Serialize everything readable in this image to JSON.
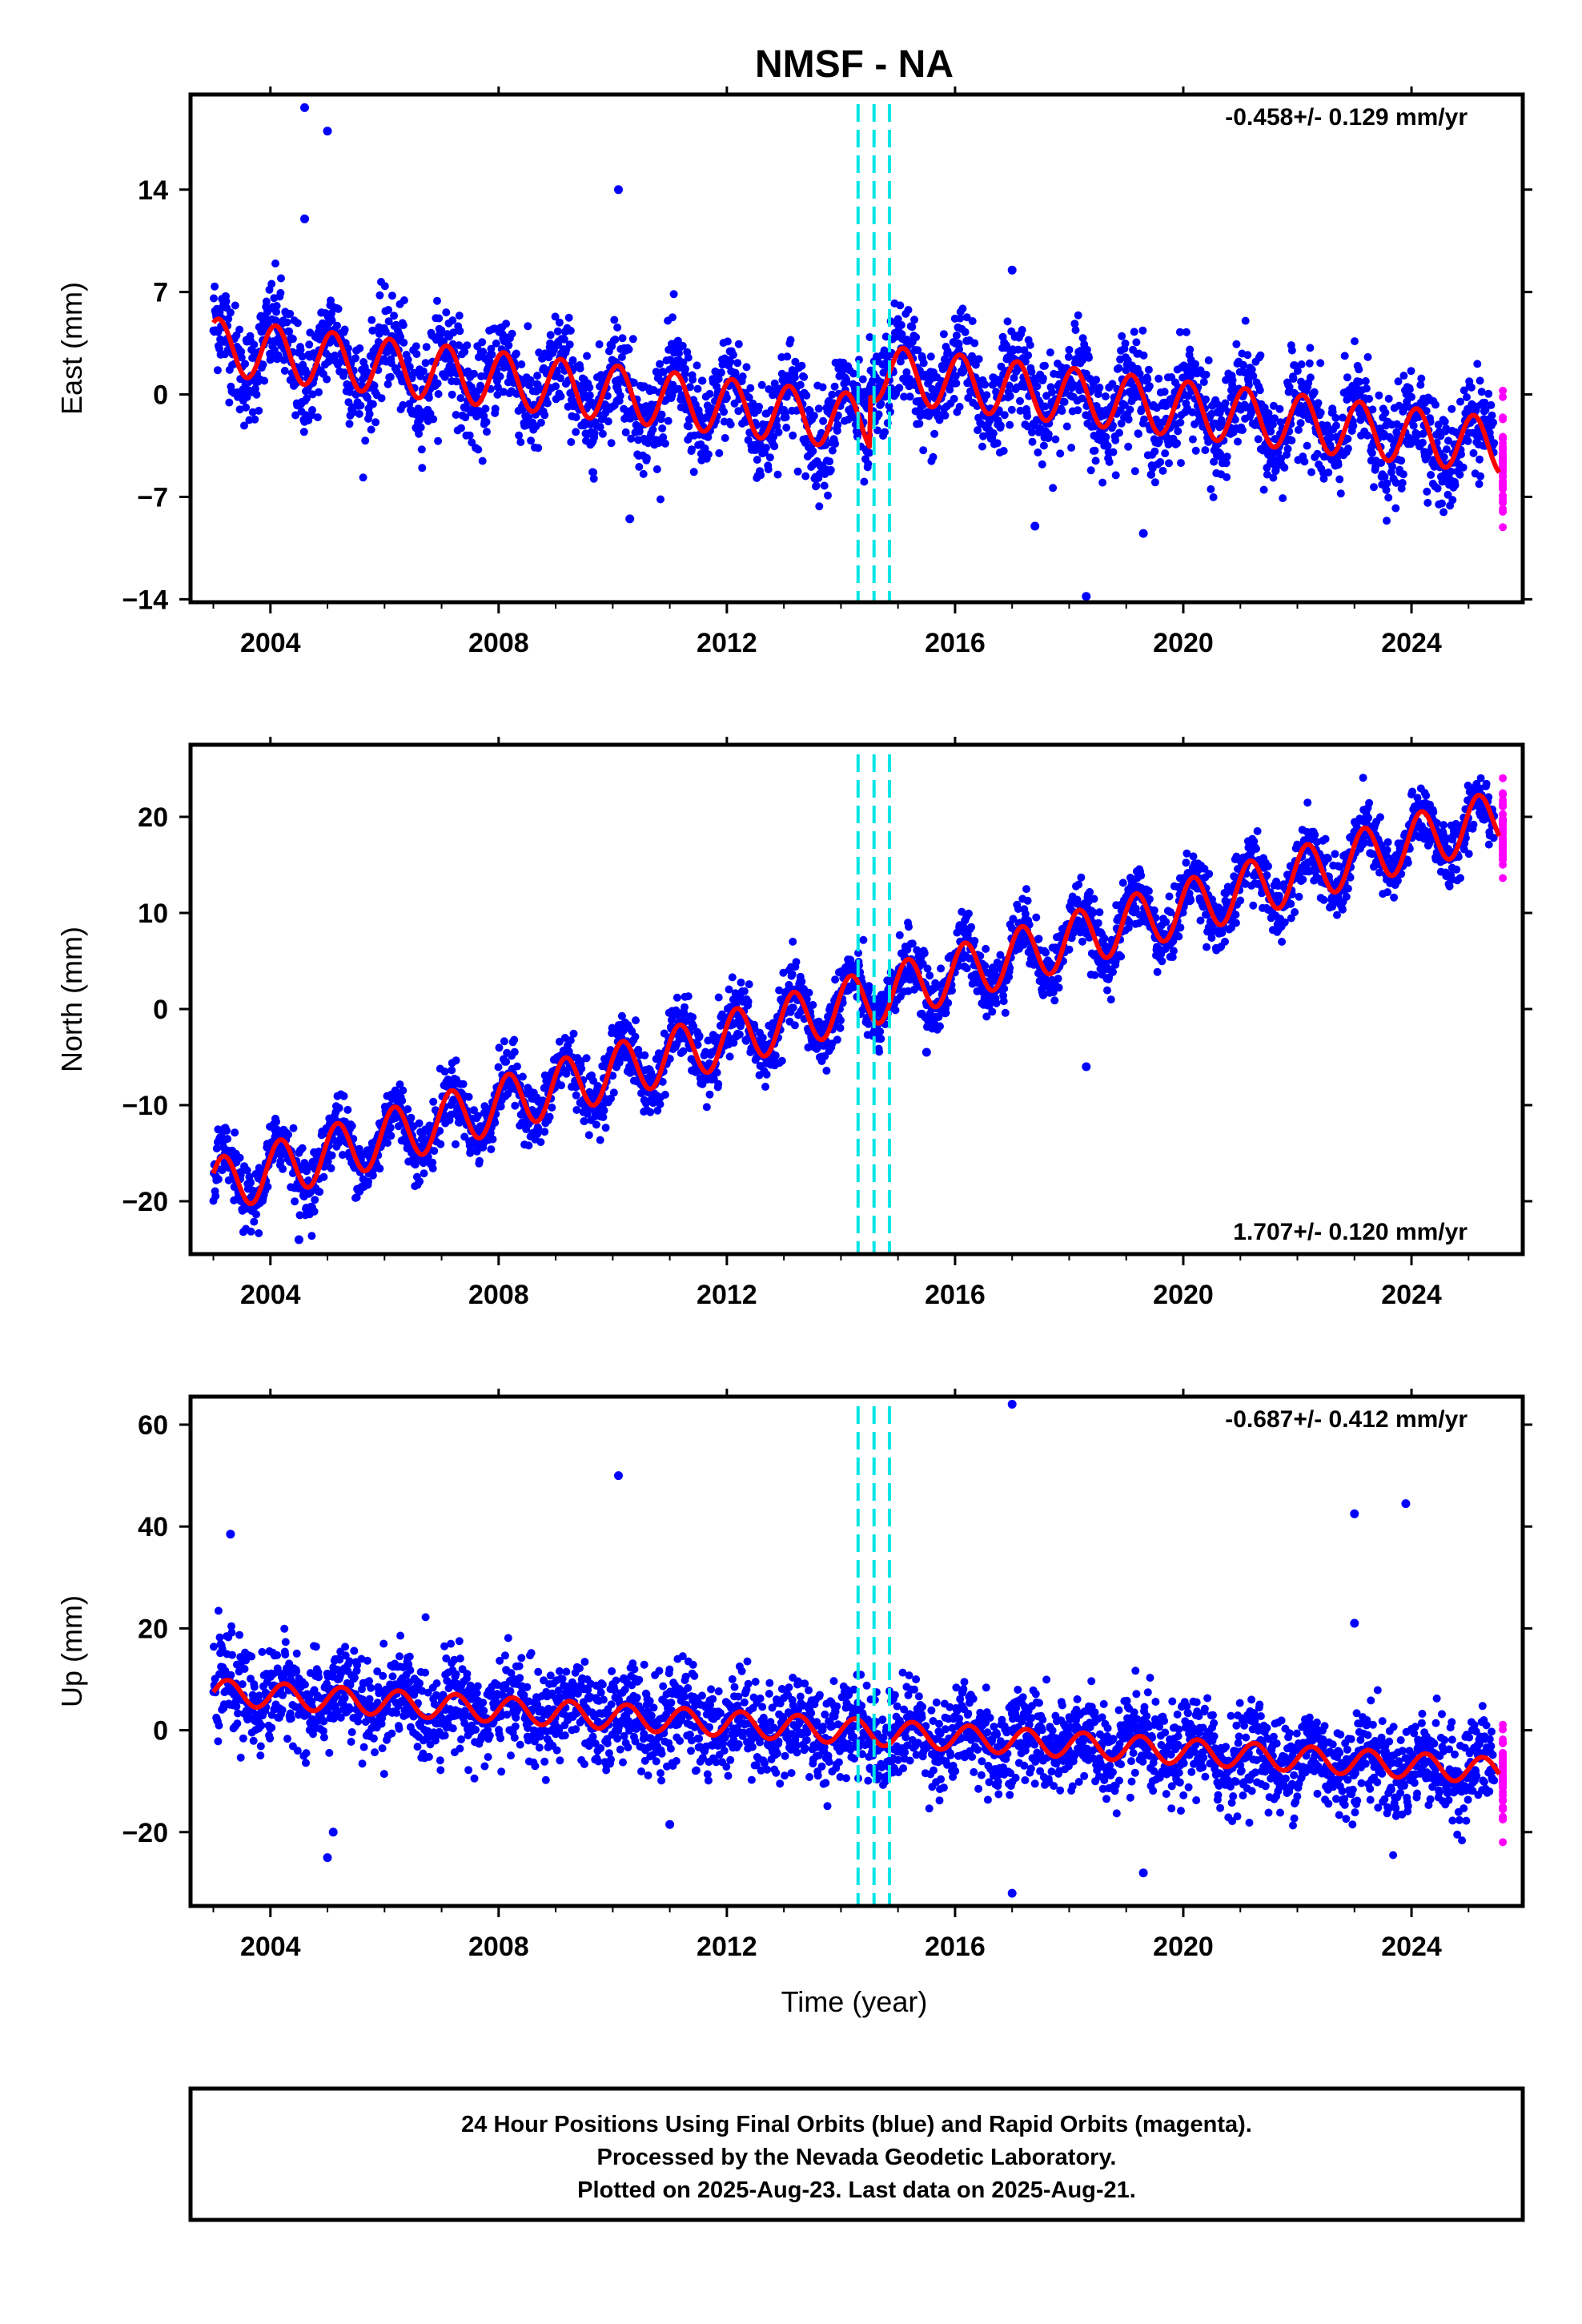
{
  "title": "NMSF - NA",
  "xlabel": "Time (year)",
  "footer": {
    "line1": "24 Hour Positions Using Final Orbits (blue) and Rapid Orbits (magenta).",
    "line2": "Processed by the Nevada Geodetic Laboratory.",
    "line3": "Plotted on 2025-Aug-23. Last data on 2025-Aug-21."
  },
  "colors": {
    "final_orbits": "#0000ff",
    "rapid_orbits": "#ff00ff",
    "model_fit": "#ff0000",
    "event_lines": "#00e5e5",
    "frame": "#000000"
  },
  "chart_data": [
    {
      "type": "scatter",
      "panel": "east",
      "ylabel": "East (mm)",
      "rate_text": "-0.458+/- 0.129 mm/yr",
      "rate_placement": "top-right",
      "xlim": [
        2002.6,
        2025.95
      ],
      "ylim": [
        -14.2,
        20.5
      ],
      "xticks": [
        2004,
        2008,
        2012,
        2016,
        2020,
        2024
      ],
      "yticks": [
        -14,
        -7,
        0,
        7,
        14
      ],
      "grid": false,
      "event_lines_x": [
        2014.3,
        2014.58,
        2014.85
      ],
      "model": {
        "start_year": 2003.0,
        "end_year": 2025.55,
        "offset_mm": 3.3,
        "rate_mm_per_yr": -0.458,
        "seasonal_amp_mm": 1.9,
        "seasonal_phase": 1.0,
        "step_year": 2014.5,
        "step_mm": 3.5
      },
      "scatter": {
        "noise_mm": 1.7,
        "final_end_year": 2025.45,
        "rapid_start_year": 2025.45,
        "rapid_end_year": 2025.64
      },
      "outliers": [
        {
          "x": 2004.6,
          "y": 19.6
        },
        {
          "x": 2005.0,
          "y": 18.0
        },
        {
          "x": 2004.6,
          "y": 12.0
        },
        {
          "x": 2010.1,
          "y": 14.0
        },
        {
          "x": 2010.3,
          "y": -8.5
        },
        {
          "x": 2018.3,
          "y": -13.8
        },
        {
          "x": 2019.3,
          "y": -9.5
        },
        {
          "x": 2017.4,
          "y": -9.0
        },
        {
          "x": 2017.0,
          "y": 8.5
        }
      ]
    },
    {
      "type": "scatter",
      "panel": "north",
      "ylabel": "North (mm)",
      "rate_text": "1.707+/- 0.120 mm/yr",
      "rate_placement": "bottom-right",
      "xlim": [
        2002.6,
        2025.95
      ],
      "ylim": [
        -25.5,
        27.5
      ],
      "xticks": [
        2004,
        2008,
        2012,
        2016,
        2020,
        2024
      ],
      "yticks": [
        -20,
        -10,
        0,
        10,
        20
      ],
      "grid": false,
      "event_lines_x": [
        2014.3,
        2014.58,
        2014.85
      ],
      "model": {
        "start_year": 2003.0,
        "end_year": 2025.55,
        "offset_mm": -18.5,
        "rate_mm_per_yr": 1.707,
        "seasonal_amp_mm": 2.9,
        "seasonal_phase": 0.5,
        "step_year": 2014.5,
        "step_mm": 0
      },
      "scatter": {
        "noise_mm": 1.6,
        "final_end_year": 2025.45,
        "rapid_start_year": 2025.45,
        "rapid_end_year": 2025.64
      },
      "outliers": [
        {
          "x": 2018.3,
          "y": -6.0
        },
        {
          "x": 2015.5,
          "y": -4.5
        },
        {
          "x": 2004.5,
          "y": -24.0
        },
        {
          "x": 2024.7,
          "y": 13.5
        }
      ]
    },
    {
      "type": "scatter",
      "panel": "up",
      "ylabel": "Up (mm)",
      "rate_text": "-0.687+/- 0.412 mm/yr",
      "rate_placement": "top-right",
      "xlim": [
        2002.6,
        2025.95
      ],
      "ylim": [
        -34.5,
        65.5
      ],
      "xticks": [
        2004,
        2008,
        2012,
        2016,
        2020,
        2024
      ],
      "yticks": [
        -20,
        0,
        20,
        40,
        60
      ],
      "grid": false,
      "event_lines_x": [
        2014.3,
        2014.58,
        2014.85
      ],
      "model": {
        "start_year": 2003.0,
        "end_year": 2025.55,
        "offset_mm": 7.5,
        "rate_mm_per_yr": -0.687,
        "seasonal_amp_mm": 2.5,
        "seasonal_phase": 0.0,
        "step_year": 2014.5,
        "step_mm": 0
      },
      "scatter": {
        "noise_mm": 4.6,
        "final_end_year": 2025.45,
        "rapid_start_year": 2025.45,
        "rapid_end_year": 2025.64
      },
      "outliers": [
        {
          "x": 2003.3,
          "y": 38.5
        },
        {
          "x": 2010.1,
          "y": 50.0
        },
        {
          "x": 2017.0,
          "y": 64.0
        },
        {
          "x": 2023.0,
          "y": 42.5
        },
        {
          "x": 2023.9,
          "y": 44.5
        },
        {
          "x": 2023.0,
          "y": 21.0
        },
        {
          "x": 2017.0,
          "y": -32.0
        },
        {
          "x": 2019.3,
          "y": -28.0
        },
        {
          "x": 2005.0,
          "y": -25.0
        },
        {
          "x": 2005.1,
          "y": -20.0
        },
        {
          "x": 2011.0,
          "y": -18.5
        }
      ]
    }
  ]
}
